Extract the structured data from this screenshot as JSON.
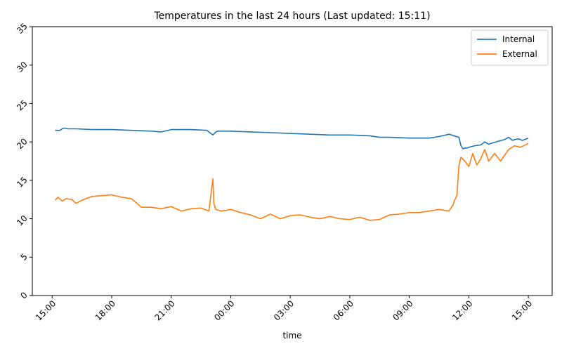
{
  "chart_data": {
    "type": "line",
    "title": "Temperatures in the last 24 hours (Last updated: 15:11)",
    "xlabel": "time",
    "ylabel": "",
    "x_ticks": [
      "15:00",
      "18:00",
      "21:00",
      "00:00",
      "03:00",
      "06:00",
      "09:00",
      "12:00",
      "15:00"
    ],
    "x_tick_hours": [
      0,
      3,
      6,
      9,
      12,
      15,
      18,
      21,
      24
    ],
    "y_ticks": [
      0,
      5,
      10,
      15,
      20,
      25,
      30,
      35
    ],
    "ylim": [
      0,
      35
    ],
    "xlim_hours": [
      -1.0,
      25.2
    ],
    "legend_position": "top-right",
    "series": [
      {
        "name": "Internal",
        "color": "#1f77b4",
        "hours": [
          0.15,
          0.4,
          0.5,
          0.6,
          0.8,
          1.2,
          2.0,
          3.0,
          4.0,
          5.0,
          5.5,
          6.0,
          6.5,
          7.0,
          7.8,
          8.1,
          8.25,
          8.35,
          8.5,
          9.0,
          10.0,
          11.0,
          12.0,
          13.0,
          14.0,
          15.0,
          16.0,
          16.5,
          17.0,
          18.0,
          19.0,
          19.5,
          20.0,
          20.5,
          20.6,
          20.7,
          20.8,
          20.9,
          21.0,
          21.3,
          21.6,
          21.8,
          22.0,
          22.5,
          22.8,
          23.0,
          23.2,
          23.3,
          23.5,
          23.7,
          24.0
        ],
        "values": [
          21.5,
          21.5,
          21.7,
          21.8,
          21.7,
          21.7,
          21.6,
          21.6,
          21.5,
          21.4,
          21.3,
          21.6,
          21.6,
          21.6,
          21.5,
          20.9,
          21.3,
          21.4,
          21.4,
          21.4,
          21.3,
          21.2,
          21.1,
          21.0,
          20.9,
          20.9,
          20.8,
          20.6,
          20.6,
          20.5,
          20.5,
          20.7,
          21.0,
          20.6,
          19.5,
          19.1,
          19.2,
          19.2,
          19.3,
          19.5,
          19.6,
          20.0,
          19.7,
          20.1,
          20.3,
          20.6,
          20.2,
          20.3,
          20.4,
          20.2,
          20.5
        ]
      },
      {
        "name": "External",
        "color": "#ff7f0e",
        "hours": [
          0.15,
          0.3,
          0.5,
          0.7,
          1.0,
          1.2,
          1.5,
          2.0,
          2.5,
          3.0,
          3.5,
          4.0,
          4.5,
          5.0,
          5.5,
          6.0,
          6.5,
          7.0,
          7.5,
          7.9,
          8.1,
          8.15,
          8.25,
          8.5,
          9.0,
          9.5,
          10.0,
          10.5,
          11.0,
          11.5,
          12.0,
          12.5,
          13.0,
          13.5,
          14.0,
          14.5,
          15.0,
          15.5,
          16.0,
          16.5,
          17.0,
          17.5,
          18.0,
          18.5,
          19.0,
          19.5,
          20.0,
          20.2,
          20.3,
          20.4,
          20.5,
          20.6,
          20.8,
          21.0,
          21.2,
          21.4,
          21.6,
          21.8,
          22.0,
          22.3,
          22.6,
          23.0,
          23.3,
          23.6,
          24.0
        ],
        "values": [
          12.4,
          12.8,
          12.3,
          12.6,
          12.5,
          12.0,
          12.4,
          12.9,
          13.0,
          13.1,
          12.8,
          12.6,
          11.5,
          11.5,
          11.3,
          11.6,
          11.0,
          11.3,
          11.4,
          11.0,
          15.2,
          12.0,
          11.2,
          11.0,
          11.2,
          10.8,
          10.5,
          10.0,
          10.6,
          10.0,
          10.4,
          10.5,
          10.2,
          10.0,
          10.3,
          10.0,
          9.9,
          10.2,
          9.8,
          9.9,
          10.5,
          10.6,
          10.8,
          10.8,
          11.0,
          11.2,
          11.0,
          11.8,
          12.5,
          13.0,
          17.0,
          18.0,
          17.5,
          16.8,
          18.5,
          17.0,
          17.8,
          19.0,
          17.5,
          18.5,
          17.5,
          19.0,
          19.5,
          19.3,
          19.8
        ]
      }
    ]
  }
}
